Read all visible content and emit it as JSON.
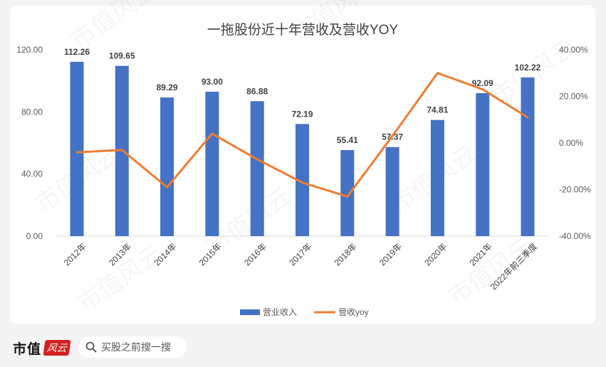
{
  "chart_data": {
    "type": "bar",
    "title": "一拖股份近十年营收及营收YOY",
    "categories": [
      "2012年",
      "2013年",
      "2014年",
      "2015年",
      "2016年",
      "2017年",
      "2018年",
      "2019年",
      "2020年",
      "2021年",
      "2022年前三季度"
    ],
    "series": [
      {
        "name": "营业收入",
        "type": "bar",
        "axis": "left",
        "color": "#4472c4",
        "values": [
          112.26,
          109.65,
          89.29,
          93.0,
          86.88,
          72.19,
          55.41,
          57.37,
          74.81,
          92.09,
          102.22
        ],
        "labels": [
          "112.26",
          "109.65",
          "89.29",
          "93.00",
          "86.88",
          "72.19",
          "55.41",
          "57.37",
          "74.81",
          "92.09",
          "102.22"
        ]
      },
      {
        "name": "营收yoy",
        "type": "line",
        "axis": "right",
        "color": "#ed7d31",
        "values": [
          -4.0,
          -3.0,
          -19.0,
          4.0,
          -7.0,
          -17.0,
          -23.0,
          3.0,
          30.0,
          23.0,
          11.0
        ]
      }
    ],
    "y_left": {
      "min": 0,
      "max": 120,
      "ticks": [
        "0.00",
        "40.00",
        "80.00",
        "120.00"
      ]
    },
    "y_right": {
      "min": -40,
      "max": 40,
      "ticks": [
        "-40.00%",
        "-20.00%",
        "0.00%",
        "20.00%",
        "40.00%"
      ]
    },
    "grid": false,
    "legend_position": "bottom"
  },
  "watermark": "市值风云",
  "footer": {
    "brand": "市值",
    "brand_seal": "风云",
    "search_icon": "search-icon",
    "search_placeholder": "买股之前搜一搜"
  }
}
